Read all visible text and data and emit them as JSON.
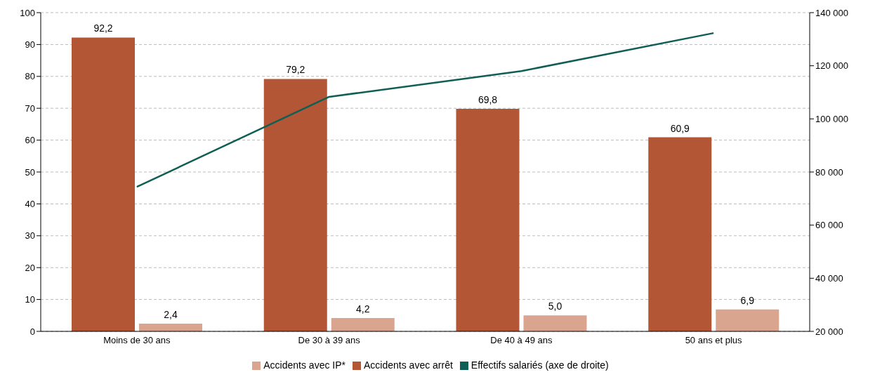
{
  "chart_data": {
    "type": "bar",
    "categories": [
      "Moins de 30 ans",
      "De 30 à 39 ans",
      "De 40 à 49 ans",
      "50 ans et plus"
    ],
    "series": [
      {
        "name": "Accidents avec arrêt",
        "color": "#b35636",
        "values": [
          92.2,
          79.2,
          69.8,
          60.9
        ],
        "value_labels": [
          "92,2",
          "79,2",
          "69,8",
          "60,9"
        ]
      },
      {
        "name": "Accidents avec IP*",
        "color": "#d9a58e",
        "values": [
          2.4,
          4.2,
          5.0,
          6.9
        ],
        "value_labels": [
          "2,4",
          "4,2",
          "5,0",
          "6,9"
        ]
      },
      {
        "name": "Effectifs salariés (axe de droite)",
        "type": "line",
        "axis": "y2",
        "color": "#0f5f55",
        "values": [
          74400,
          108300,
          118000,
          132300
        ]
      }
    ],
    "ylim": [
      0,
      100
    ],
    "yticks": [
      0,
      10,
      20,
      30,
      40,
      50,
      60,
      70,
      80,
      90,
      100
    ],
    "y2lim": [
      20000,
      140000
    ],
    "y2ticks": [
      {
        "value": 20000,
        "label": "20 000"
      },
      {
        "value": 40000,
        "label": "40 000"
      },
      {
        "value": 60000,
        "label": "60 000"
      },
      {
        "value": 80000,
        "label": "80 000"
      },
      {
        "value": 100000,
        "label": "100 000"
      },
      {
        "value": 120000,
        "label": "120 000"
      },
      {
        "value": 140000,
        "label": "140 000"
      }
    ],
    "grid": "y",
    "legend": "bottom",
    "marker": "none"
  }
}
